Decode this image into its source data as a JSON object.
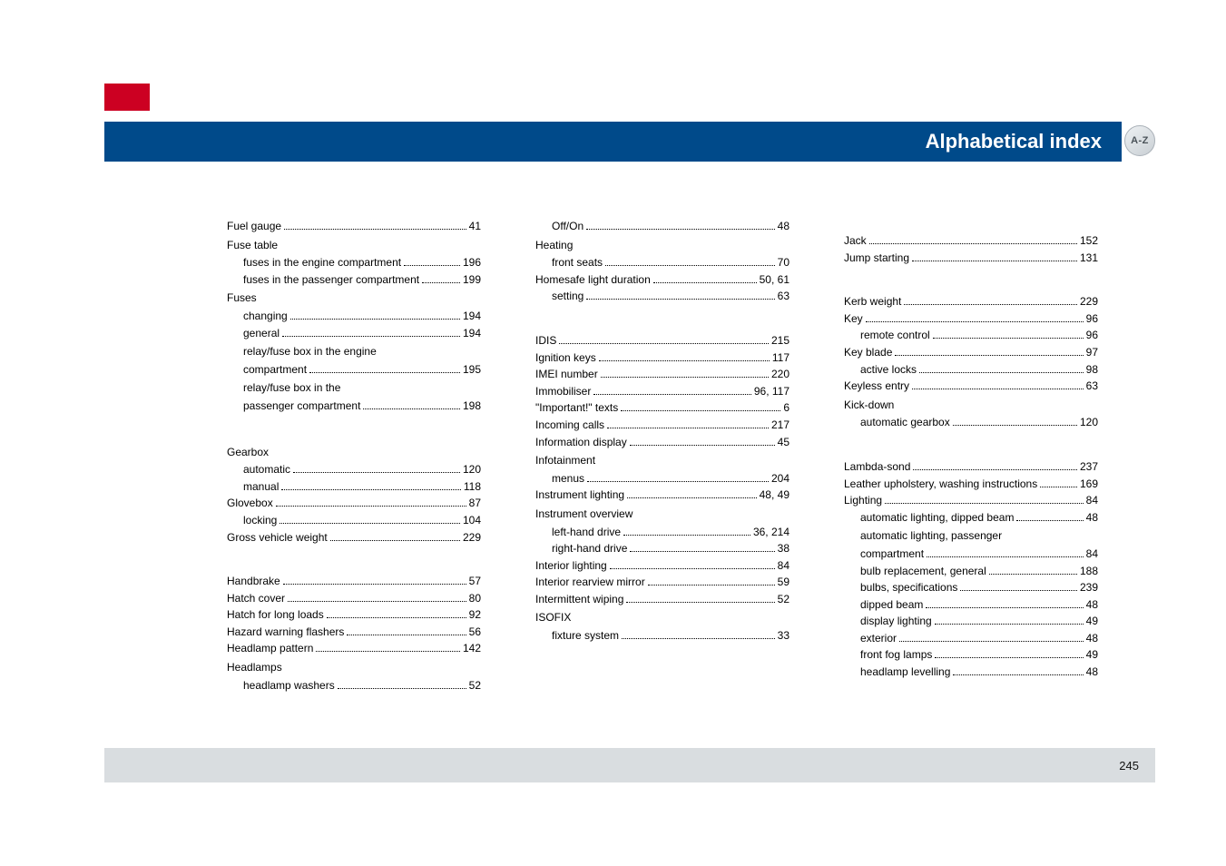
{
  "header": {
    "title": "Alphabetical index",
    "badge": "A-Z"
  },
  "footer": {
    "page": "245"
  },
  "col1": [
    {
      "t": "entry",
      "label": "Fuel gauge",
      "pg": "41"
    },
    {
      "t": "heading",
      "label": "Fuse table"
    },
    {
      "t": "entry",
      "sub": true,
      "label": "fuses in the engine compartment",
      "pg": "196"
    },
    {
      "t": "entry",
      "sub": true,
      "label": "fuses in the passenger compartment",
      "pg": "199"
    },
    {
      "t": "heading",
      "label": "Fuses"
    },
    {
      "t": "entry",
      "sub": true,
      "label": "changing",
      "pg": "194"
    },
    {
      "t": "entry",
      "sub": true,
      "label": "general",
      "pg": "194"
    },
    {
      "t": "entry",
      "sub": true,
      "label": "relay/fuse box in the engine compartment",
      "pg": "195",
      "wrap": true
    },
    {
      "t": "entry",
      "sub": true,
      "label": "relay/fuse box in the passenger compartment",
      "pg": "198",
      "wrap": true
    },
    {
      "t": "biggap"
    },
    {
      "t": "heading",
      "label": "Gearbox"
    },
    {
      "t": "entry",
      "sub": true,
      "label": "automatic",
      "pg": "120"
    },
    {
      "t": "entry",
      "sub": true,
      "label": "manual",
      "pg": "118"
    },
    {
      "t": "entry",
      "label": "Glovebox",
      "pg": "87"
    },
    {
      "t": "entry",
      "sub": true,
      "label": "locking",
      "pg": "104"
    },
    {
      "t": "entry",
      "label": "Gross vehicle weight",
      "pg": "229"
    },
    {
      "t": "biggap"
    },
    {
      "t": "entry",
      "label": "Handbrake",
      "pg": "57"
    },
    {
      "t": "entry",
      "label": "Hatch cover",
      "pg": "80"
    },
    {
      "t": "entry",
      "label": "Hatch for long loads",
      "pg": "92"
    },
    {
      "t": "entry",
      "label": "Hazard warning flashers",
      "pg": "56"
    },
    {
      "t": "entry",
      "label": "Headlamp pattern",
      "pg": "142"
    },
    {
      "t": "heading",
      "label": "Headlamps"
    },
    {
      "t": "entry",
      "sub": true,
      "label": "headlamp washers",
      "pg": "52"
    }
  ],
  "col2": [
    {
      "t": "entry",
      "sub": true,
      "label": "Off/On",
      "pg": "48"
    },
    {
      "t": "heading",
      "label": "Heating"
    },
    {
      "t": "entry",
      "sub": true,
      "label": "front seats",
      "pg": "70"
    },
    {
      "t": "entry",
      "label": "Homesafe light duration",
      "pg": "50, 61"
    },
    {
      "t": "entry",
      "sub": true,
      "label": "setting",
      "pg": "63"
    },
    {
      "t": "biggap"
    },
    {
      "t": "entry",
      "label": "IDIS",
      "pg": "215"
    },
    {
      "t": "entry",
      "label": "Ignition keys",
      "pg": "117"
    },
    {
      "t": "entry",
      "label": "IMEI number",
      "pg": "220"
    },
    {
      "t": "entry",
      "label": "Immobiliser",
      "pg": "96, 117"
    },
    {
      "t": "entry",
      "label": "\"Important!\" texts",
      "pg": "6"
    },
    {
      "t": "entry",
      "label": "Incoming calls",
      "pg": "217"
    },
    {
      "t": "entry",
      "label": "Information display",
      "pg": "45"
    },
    {
      "t": "heading",
      "label": "Infotainment"
    },
    {
      "t": "entry",
      "sub": true,
      "label": "menus",
      "pg": "204"
    },
    {
      "t": "entry",
      "label": "Instrument lighting",
      "pg": "48, 49"
    },
    {
      "t": "heading",
      "label": "Instrument overview"
    },
    {
      "t": "entry",
      "sub": true,
      "label": "left-hand drive",
      "pg": "36, 214"
    },
    {
      "t": "entry",
      "sub": true,
      "label": "right-hand drive",
      "pg": "38"
    },
    {
      "t": "entry",
      "label": "Interior lighting",
      "pg": "84"
    },
    {
      "t": "entry",
      "label": "Interior rearview mirror",
      "pg": "59"
    },
    {
      "t": "entry",
      "label": "Intermittent wiping",
      "pg": "52"
    },
    {
      "t": "heading",
      "label": "ISOFIX"
    },
    {
      "t": "entry",
      "sub": true,
      "label": "fixture system",
      "pg": "33"
    }
  ],
  "col3": [
    {
      "t": "gap"
    },
    {
      "t": "entry",
      "label": "Jack",
      "pg": "152"
    },
    {
      "t": "entry",
      "label": "Jump starting",
      "pg": "131"
    },
    {
      "t": "biggap"
    },
    {
      "t": "entry",
      "label": "Kerb weight",
      "pg": "229"
    },
    {
      "t": "entry",
      "label": "Key",
      "pg": "96"
    },
    {
      "t": "entry",
      "sub": true,
      "label": "remote control",
      "pg": "96"
    },
    {
      "t": "entry",
      "label": "Key blade",
      "pg": "97"
    },
    {
      "t": "entry",
      "sub": true,
      "label": "active locks",
      "pg": "98"
    },
    {
      "t": "entry",
      "label": "Keyless entry",
      "pg": "63"
    },
    {
      "t": "heading",
      "label": "Kick-down"
    },
    {
      "t": "entry",
      "sub": true,
      "label": "automatic gearbox",
      "pg": "120"
    },
    {
      "t": "biggap"
    },
    {
      "t": "entry",
      "label": "Lambda-sond",
      "pg": "237"
    },
    {
      "t": "entry",
      "label": "Leather upholstery, washing instructions",
      "pg": "169"
    },
    {
      "t": "entry",
      "label": "Lighting",
      "pg": "84"
    },
    {
      "t": "entry",
      "sub": true,
      "label": "automatic lighting, dipped beam",
      "pg": "48"
    },
    {
      "t": "entry",
      "sub": true,
      "label": "automatic lighting, passenger compartment",
      "pg": "84",
      "wrap": true
    },
    {
      "t": "entry",
      "sub": true,
      "label": "bulb replacement, general",
      "pg": "188"
    },
    {
      "t": "entry",
      "sub": true,
      "label": "bulbs, specifications",
      "pg": "239"
    },
    {
      "t": "entry",
      "sub": true,
      "label": "dipped beam",
      "pg": "48"
    },
    {
      "t": "entry",
      "sub": true,
      "label": "display lighting",
      "pg": "49"
    },
    {
      "t": "entry",
      "sub": true,
      "label": "exterior",
      "pg": "48"
    },
    {
      "t": "entry",
      "sub": true,
      "label": "front fog lamps",
      "pg": "49"
    },
    {
      "t": "entry",
      "sub": true,
      "label": "headlamp levelling",
      "pg": "48"
    }
  ]
}
